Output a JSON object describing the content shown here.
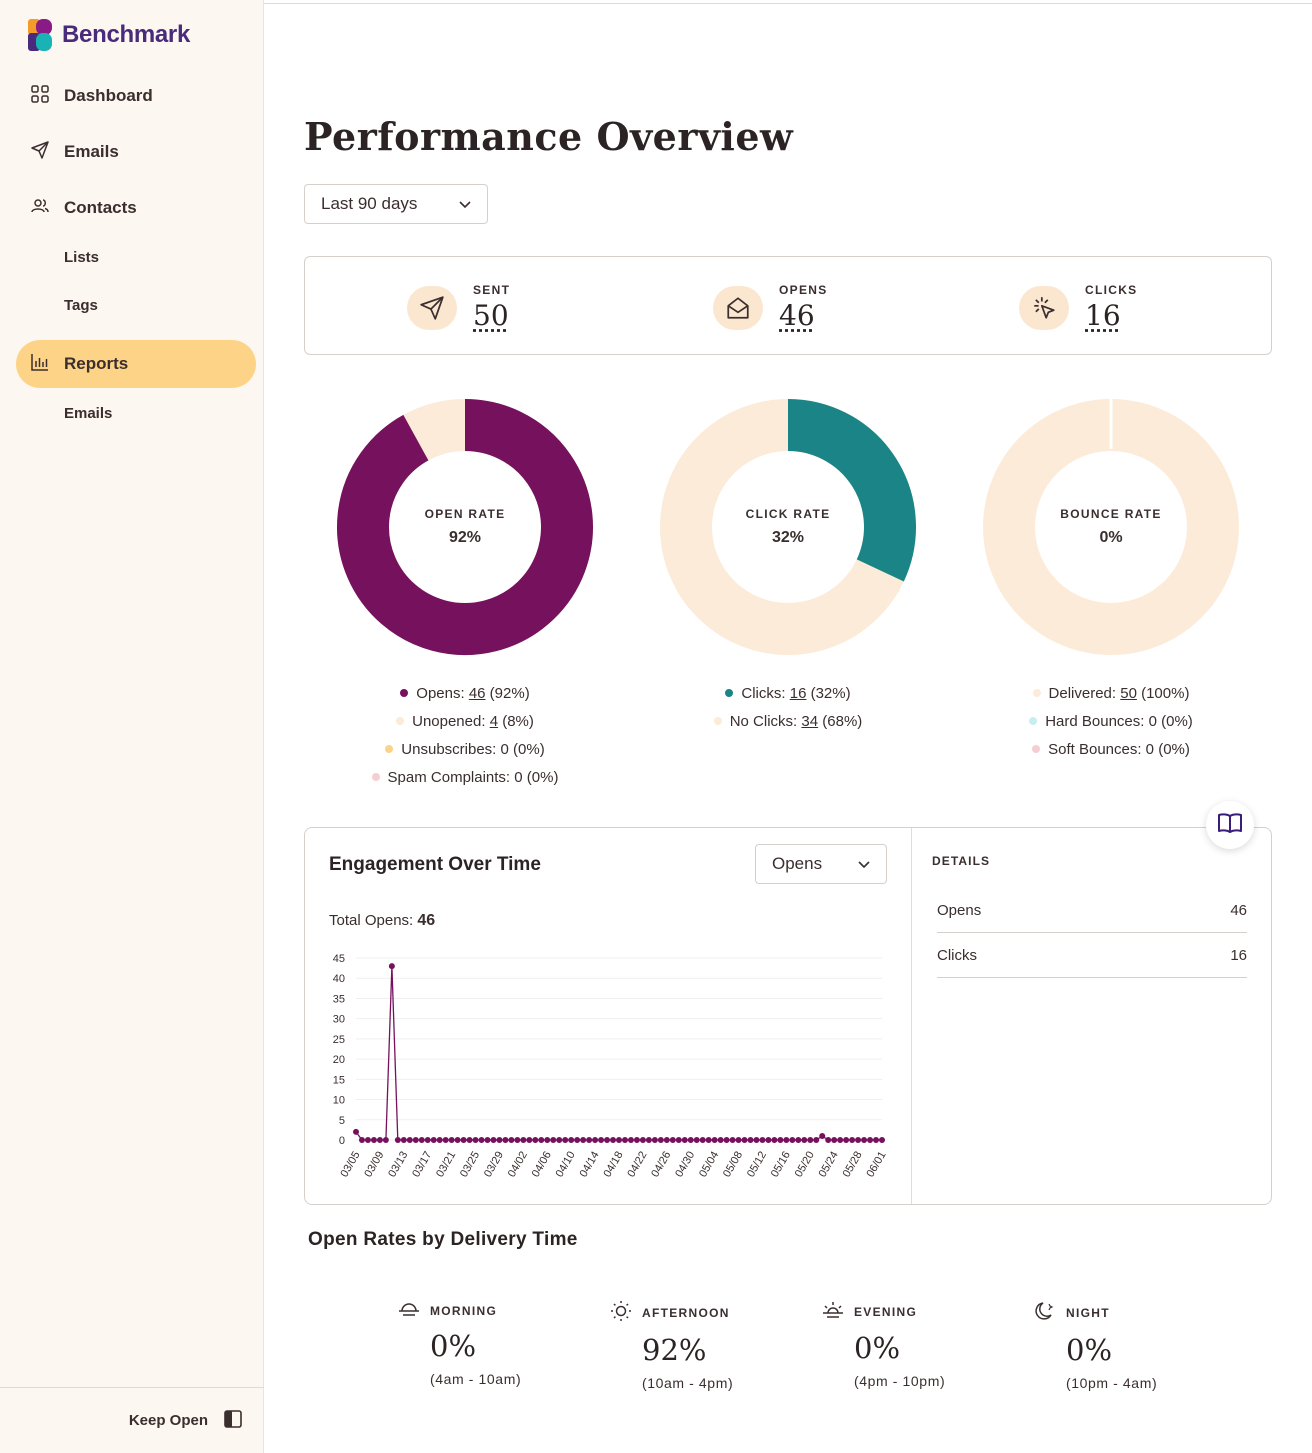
{
  "app": {
    "brand": "Benchmark"
  },
  "sidebar": {
    "items": [
      {
        "label": "Dashboard",
        "icon": "grid-icon"
      },
      {
        "label": "Emails",
        "icon": "send-icon"
      },
      {
        "label": "Contacts",
        "icon": "users-icon"
      },
      {
        "label": "Lists"
      },
      {
        "label": "Tags"
      },
      {
        "label": "Reports",
        "icon": "bar-chart-icon",
        "active": true
      },
      {
        "label": "Emails"
      }
    ],
    "footer_label": "Keep Open"
  },
  "page": {
    "title": "Performance Overview",
    "range_select": "Last 90 days"
  },
  "stats": {
    "sent": {
      "label": "SENT",
      "value": "50"
    },
    "opens": {
      "label": "OPENS",
      "value": "46"
    },
    "clicks": {
      "label": "CLICKS",
      "value": "16"
    }
  },
  "colors": {
    "open": "#76115e",
    "click": "#1a8486",
    "cream": "#fcebd8",
    "unsubscribe": "#fdd388",
    "spam": "#f6cdd0",
    "hard_bounce": "#c8eef0",
    "active_nav": "#fdd388"
  },
  "donuts": {
    "open_rate": {
      "title": "OPEN RATE",
      "value": "92%",
      "fraction": 0.92
    },
    "click_rate": {
      "title": "CLICK RATE",
      "value": "32%",
      "fraction": 0.32
    },
    "bounce_rate": {
      "title": "BOUNCE RATE",
      "value": "0%",
      "fraction": 0.0
    }
  },
  "legends": {
    "open": [
      {
        "label": "Opens: ",
        "num": "46",
        "pct": " (92%)"
      },
      {
        "label": "Unopened: ",
        "num": "4",
        "pct": " (8%)"
      },
      {
        "label": "Unsubscribes: 0 (0%)"
      },
      {
        "label": "Spam Complaints: 0 (0%)"
      }
    ],
    "click": [
      {
        "label": "Clicks: ",
        "num": "16",
        "pct": " (32%)"
      },
      {
        "label": "No Clicks: ",
        "num": "34",
        "pct": " (68%)"
      }
    ],
    "bounce": [
      {
        "label": "Delivered: ",
        "num": "50",
        "pct": " (100%)"
      },
      {
        "label": "Hard Bounces: 0 (0%)"
      },
      {
        "label": "Soft Bounces: 0 (0%)"
      }
    ]
  },
  "engagement": {
    "title": "Engagement Over Time",
    "metric_select": "Opens",
    "total_label": "Total Opens: ",
    "total_value": "46",
    "details_title": "DETAILS",
    "details": [
      {
        "label": "Opens",
        "value": "46"
      },
      {
        "label": "Clicks",
        "value": "16"
      }
    ]
  },
  "chart_data": {
    "type": "line",
    "ylim": [
      0,
      45
    ],
    "yticks": [
      0,
      5,
      10,
      15,
      20,
      25,
      30,
      35,
      40,
      45
    ],
    "xtick_labels": [
      "03/05",
      "03/09",
      "03/13",
      "03/17",
      "03/21",
      "03/25",
      "03/29",
      "04/02",
      "04/06",
      "04/10",
      "04/14",
      "04/18",
      "04/22",
      "04/26",
      "04/30",
      "05/04",
      "05/08",
      "05/12",
      "05/16",
      "05/20",
      "05/24",
      "05/28",
      "06/01"
    ],
    "series": [
      {
        "values": [
          2,
          0,
          0,
          0,
          0,
          0,
          43,
          0,
          0,
          0,
          0,
          0,
          0,
          0,
          0,
          0,
          0,
          0,
          0,
          0,
          0,
          0,
          0,
          0,
          0,
          0,
          0,
          0,
          0,
          0,
          0,
          0,
          0,
          0,
          0,
          0,
          0,
          0,
          0,
          0,
          0,
          0,
          0,
          0,
          0,
          0,
          0,
          0,
          0,
          0,
          0,
          0,
          0,
          0,
          0,
          0,
          0,
          0,
          0,
          0,
          0,
          0,
          0,
          0,
          0,
          0,
          0,
          0,
          0,
          0,
          0,
          0,
          0,
          0,
          0,
          0,
          0,
          0,
          1,
          0,
          0,
          0,
          0,
          0,
          0,
          0,
          0,
          0,
          0
        ]
      }
    ],
    "color": "#76115e",
    "grid": true
  },
  "delivery": {
    "title": "Open Rates by Delivery Time",
    "slots": [
      {
        "label": "MORNING",
        "value": "0%",
        "range": "(4am - 10am)",
        "icon": "sunrise-icon"
      },
      {
        "label": "AFTERNOON",
        "value": "92%",
        "range": "(10am - 4pm)",
        "icon": "sun-icon"
      },
      {
        "label": "EVENING",
        "value": "0%",
        "range": "(4pm - 10pm)",
        "icon": "sunset-icon"
      },
      {
        "label": "NIGHT",
        "value": "0%",
        "range": "(10pm - 4am)",
        "icon": "moon-icon"
      }
    ]
  }
}
